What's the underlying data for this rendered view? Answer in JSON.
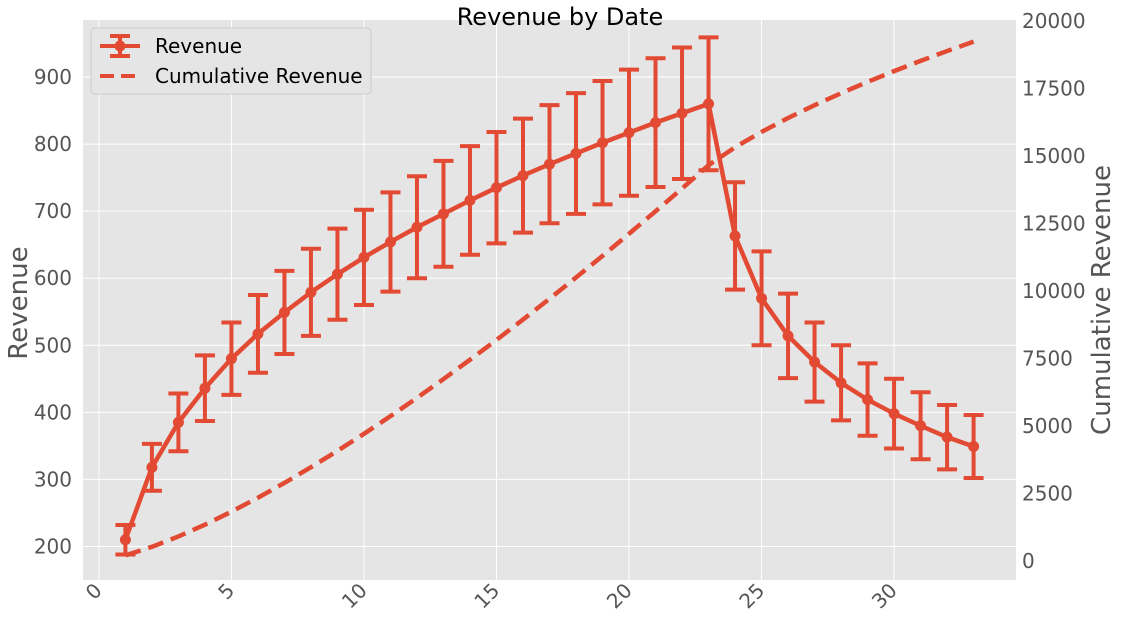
{
  "chart_data": {
    "type": "line",
    "title": "Revenue by Date",
    "xlabel": "",
    "ylabel": "Revenue",
    "y2label": "Cumulative Revenue",
    "xlim": [
      -0.6,
      34.6
    ],
    "ylim": [
      150,
      985
    ],
    "y2lim": [
      -700,
      20030
    ],
    "xticks": [
      0,
      5,
      10,
      15,
      20,
      25,
      30
    ],
    "yticks": [
      200,
      300,
      400,
      500,
      600,
      700,
      800,
      900
    ],
    "y2ticks": [
      0,
      2500,
      5000,
      7500,
      10000,
      12500,
      15000,
      17500,
      20000
    ],
    "grid": true,
    "legend_position": "top-left",
    "x": [
      1,
      2,
      3,
      4,
      5,
      6,
      7,
      8,
      9,
      10,
      11,
      12,
      13,
      14,
      15,
      16,
      17,
      18,
      19,
      20,
      21,
      22,
      23,
      24,
      25,
      26,
      27,
      28,
      29,
      30,
      31,
      32,
      33
    ],
    "series": [
      {
        "name": "Revenue",
        "kind": "line-errorbar",
        "color": "#e24a33",
        "values": [
          210,
          318,
          385,
          436,
          480,
          517,
          549,
          579,
          606,
          631,
          654,
          676,
          696,
          716,
          735,
          753,
          770,
          786,
          802,
          817,
          832,
          846,
          860,
          663,
          570,
          514,
          475,
          444,
          419,
          398,
          380,
          363,
          349
        ],
        "errors": [
          22,
          35,
          43,
          49,
          54,
          58,
          62,
          65,
          68,
          71,
          74,
          76,
          79,
          81,
          83,
          85,
          88,
          90,
          92,
          94,
          96,
          98,
          99,
          80,
          70,
          63,
          59,
          56,
          54,
          52,
          50,
          48,
          47
        ]
      },
      {
        "name": "Cumulative Revenue",
        "kind": "dashed-line",
        "axis": "right",
        "color": "#e24a33",
        "values": [
          210,
          528,
          913,
          1349,
          1829,
          2346,
          2895,
          3474,
          4080,
          4711,
          5365,
          6041,
          6737,
          7453,
          8188,
          8941,
          9711,
          10497,
          11299,
          12116,
          12948,
          13794,
          14654,
          15317,
          15887,
          16401,
          16876,
          17320,
          17739,
          18137,
          18517,
          18880,
          19229
        ]
      }
    ]
  }
}
